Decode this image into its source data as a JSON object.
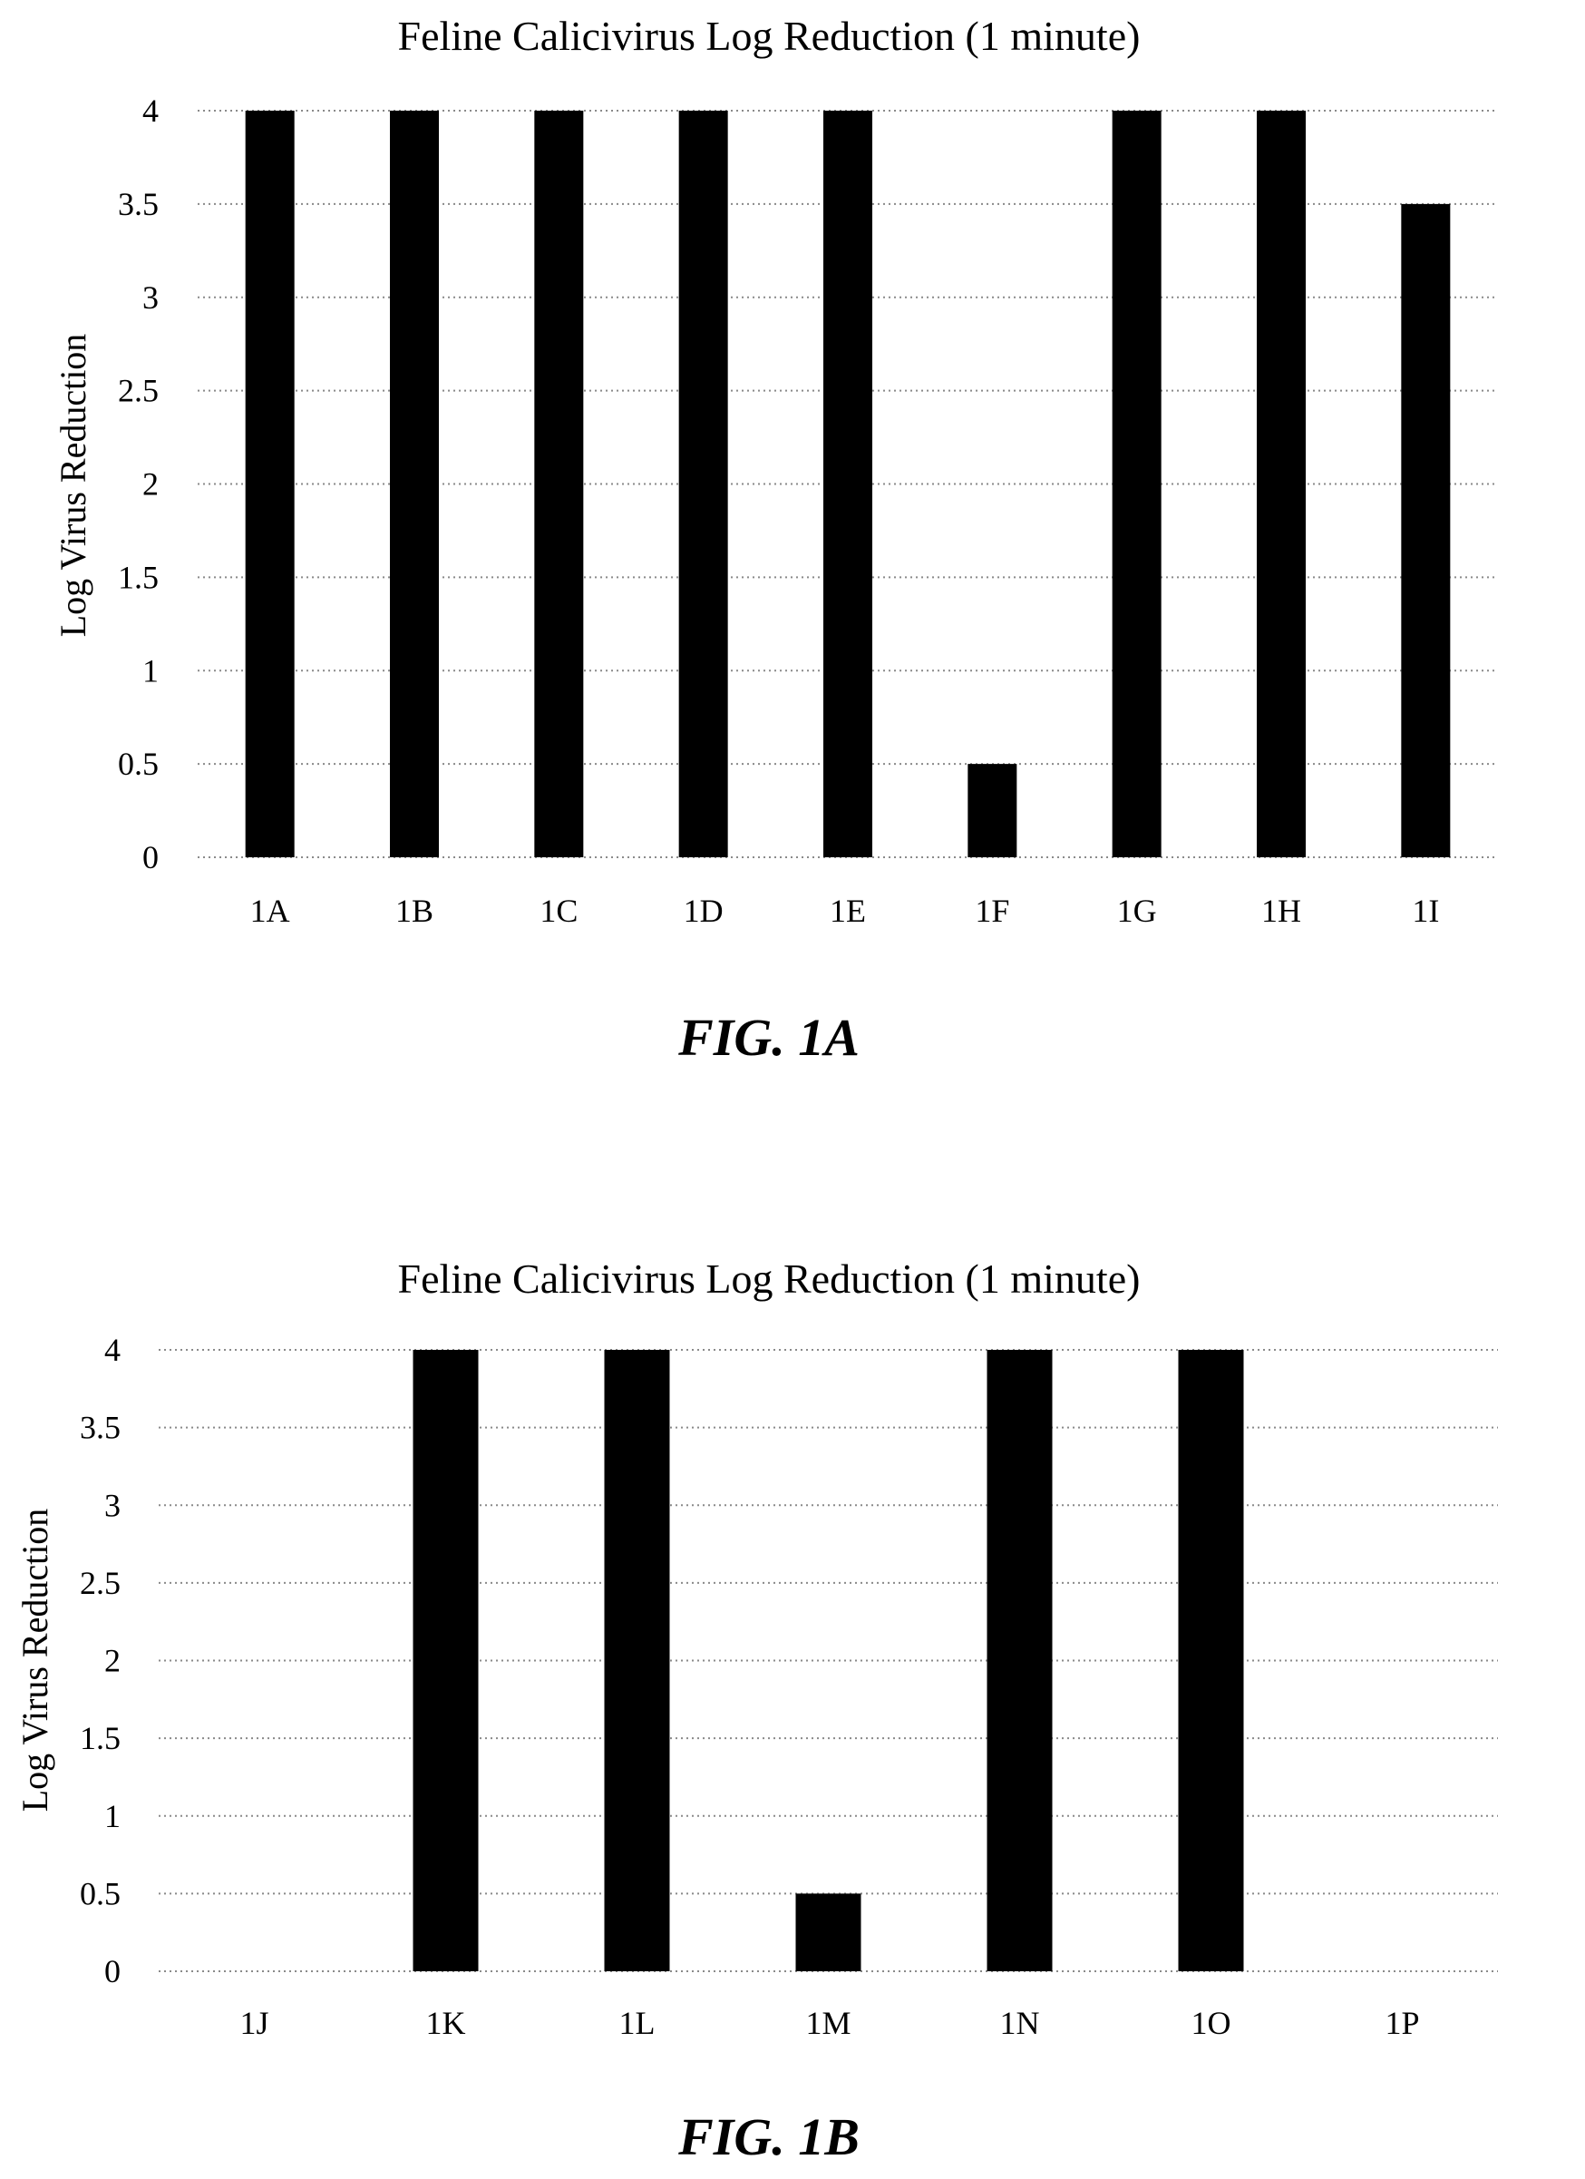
{
  "chart_data": [
    {
      "type": "bar",
      "title": "Feline Calicivirus Log Reduction (1 minute)",
      "caption": "FIG. 1A",
      "ylabel": "Log Virus Reduction",
      "xlabel": "",
      "categories": [
        "1A",
        "1B",
        "1C",
        "1D",
        "1E",
        "1F",
        "1G",
        "1H",
        "1I"
      ],
      "values": [
        4,
        4,
        4,
        4,
        4,
        0.5,
        4,
        4,
        3.5
      ],
      "ylim": [
        0,
        4
      ],
      "yticks": [
        "0",
        "0.5",
        "1",
        "1.5",
        "2",
        "2.5",
        "3",
        "3.5",
        "4"
      ],
      "grid": true,
      "bar_color": "#000000"
    },
    {
      "type": "bar",
      "title": "Feline Calicivirus Log Reduction (1 minute)",
      "caption": "FIG. 1B",
      "ylabel": "Log Virus Reduction",
      "xlabel": "",
      "categories": [
        "1J",
        "1K",
        "1L",
        "1M",
        "1N",
        "1O",
        "1P"
      ],
      "values": [
        0,
        4,
        4,
        0.5,
        4,
        4,
        0
      ],
      "ylim": [
        0,
        4
      ],
      "yticks": [
        "0",
        "0.5",
        "1",
        "1.5",
        "2",
        "2.5",
        "3",
        "3.5",
        "4"
      ],
      "grid": true,
      "bar_color": "#000000"
    }
  ]
}
